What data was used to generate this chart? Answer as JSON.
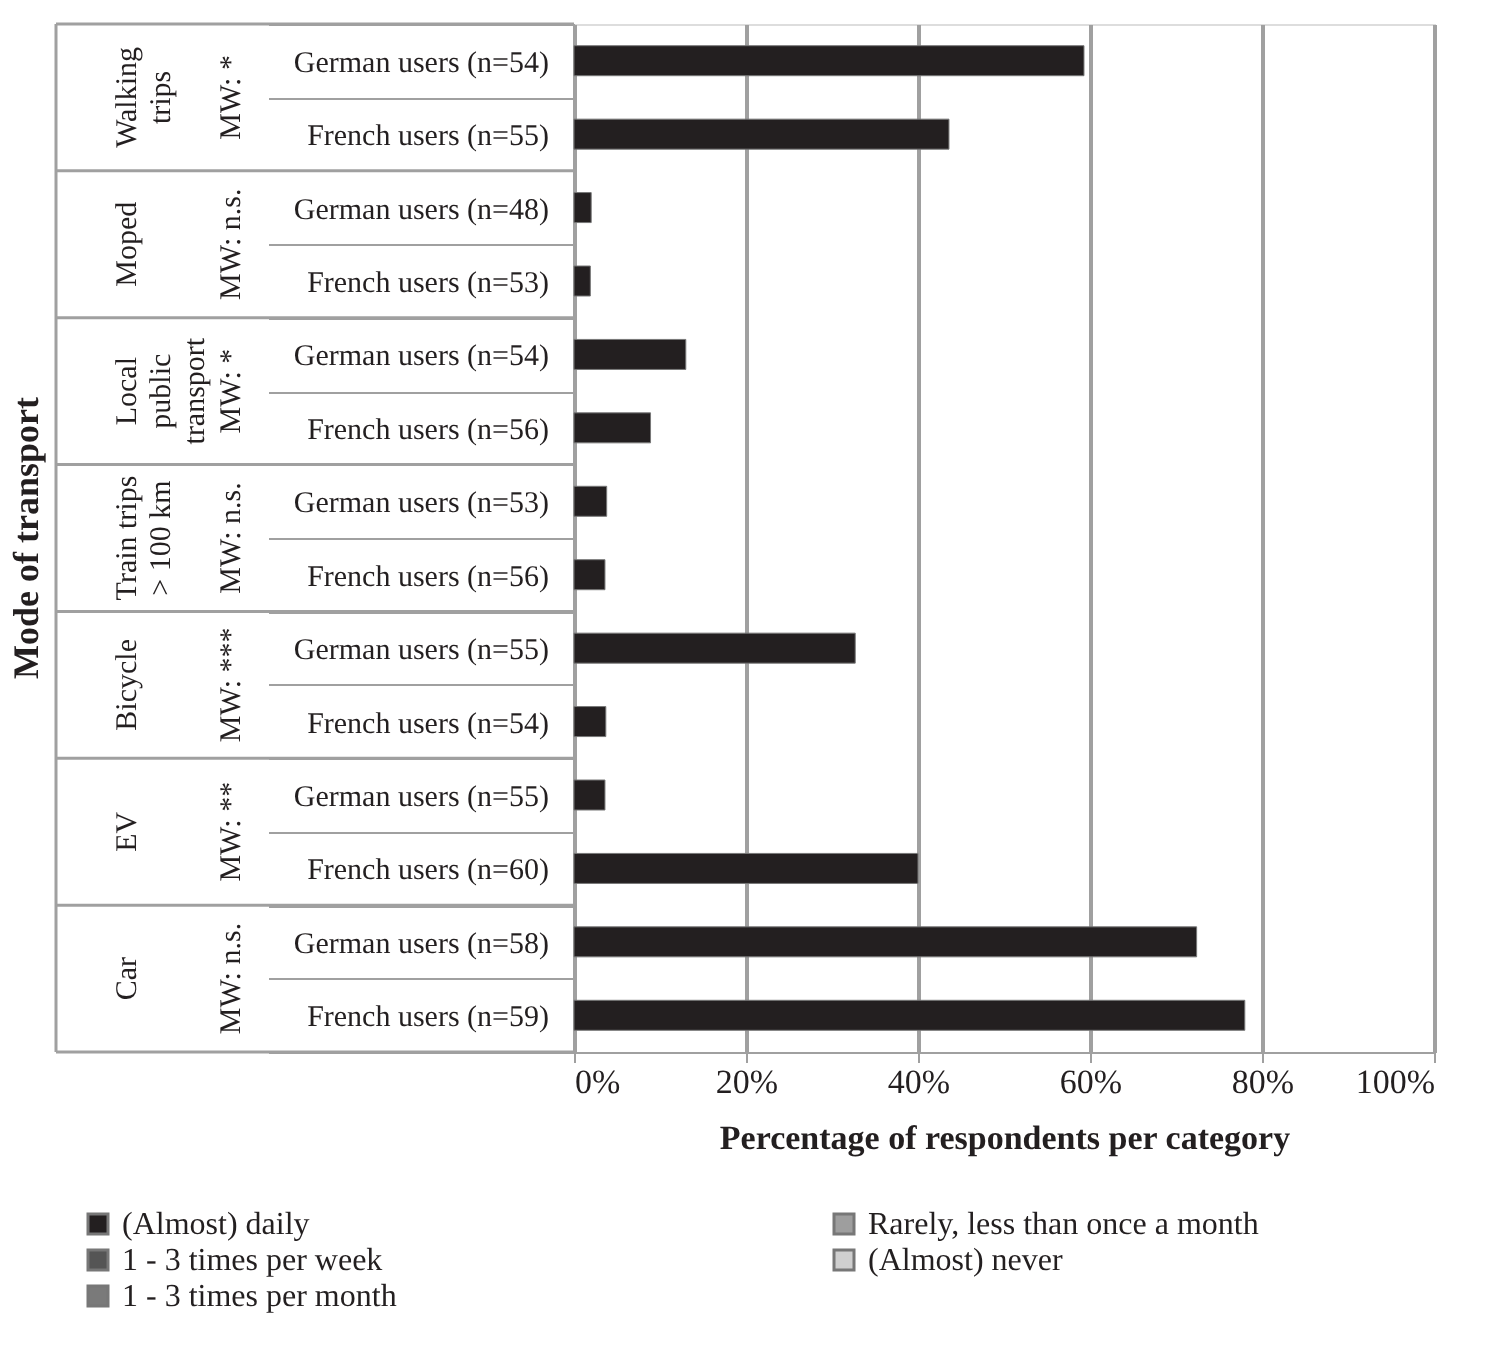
{
  "chart_data": {
    "type": "bar",
    "orientation": "horizontal",
    "categories": [
      "German users (n=54)",
      "French users (n=55)",
      "German users (n=48)",
      "French users (n=53)",
      "German users (n=54)",
      "French users (n=56)",
      "German users (n=53)",
      "French users (n=56)",
      "German users (n=55)",
      "French users (n=54)",
      "German users (n=55)",
      "French users (n=60)",
      "German users (n=58)",
      "French users (n=59)"
    ],
    "series": [
      {
        "name": "(Almost) daily",
        "color": "#231f20",
        "values": [
          59.3,
          43.6,
          2.0,
          1.9,
          13.0,
          8.9,
          3.8,
          3.6,
          32.7,
          3.7,
          3.6,
          40.0,
          72.4,
          78.0
        ]
      },
      {
        "name": "1 - 3 times per week",
        "color": "#555555",
        "values": [
          null,
          null,
          null,
          null,
          null,
          null,
          null,
          null,
          null,
          null,
          null,
          null,
          null,
          null
        ]
      },
      {
        "name": "1 - 3 times per month",
        "color": "#7a7a7a",
        "values": [
          null,
          null,
          null,
          null,
          null,
          null,
          null,
          null,
          null,
          null,
          null,
          null,
          null,
          null
        ]
      },
      {
        "name": "Rarely, less than once a month",
        "color": "#9e9e9e",
        "values": [
          null,
          null,
          null,
          null,
          null,
          null,
          null,
          null,
          null,
          null,
          null,
          null,
          null,
          null
        ]
      },
      {
        "name": "(Almost) never",
        "color": "#cfcfcf",
        "values": [
          null,
          null,
          null,
          null,
          null,
          null,
          null,
          null,
          null,
          null,
          null,
          null,
          null,
          null
        ]
      }
    ],
    "xlim": [
      0,
      100
    ],
    "xticks": [
      {
        "value": 0,
        "label": "0%"
      },
      {
        "value": 20,
        "label": "20%"
      },
      {
        "value": 40,
        "label": "40%"
      },
      {
        "value": 60,
        "label": "60%"
      },
      {
        "value": 80,
        "label": "80%"
      },
      {
        "value": 100,
        "label": "100%"
      }
    ],
    "xlabel": "Percentage of respondents per category",
    "annotations": [
      "Mode of transport",
      "Walking\ntrips",
      "MW: *",
      "Moped",
      "MW: n.s.",
      "Local\npublic\ntransport",
      "MW: *",
      "Train trips\n> 100 km",
      "MW: n.s.",
      "Bicycle",
      "MW: ***",
      "EV",
      "MW: **",
      "Car",
      "MW: n.s."
    ],
    "grid": "x",
    "legend": "bottom"
  }
}
